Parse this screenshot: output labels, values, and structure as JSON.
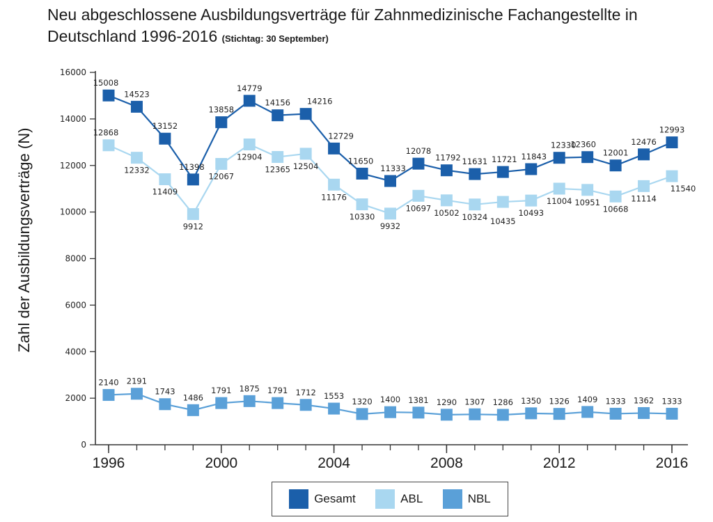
{
  "chart_data": {
    "type": "line",
    "title": "Neu abgeschlossene Ausbildungsverträge für Zahnmedizinische Fachangestellte in Deutschland 1996-2016",
    "subtitle": "(Stichtag: 30 September)",
    "xlabel": "",
    "ylabel": "Zahl der Ausbildungsverträge (N)",
    "x": [
      1996,
      1997,
      1998,
      1999,
      2000,
      2001,
      2002,
      2003,
      2004,
      2005,
      2006,
      2007,
      2008,
      2009,
      2010,
      2011,
      2012,
      2013,
      2014,
      2015,
      2016
    ],
    "xticks": [
      "1996",
      "2000",
      "2004",
      "2008",
      "2012",
      "2016"
    ],
    "yticks": [
      "0",
      "2000",
      "4000",
      "6000",
      "8000",
      "10000",
      "12000",
      "14000",
      "16000"
    ],
    "ylim": [
      0,
      16000
    ],
    "grid": false,
    "legend": "bottom",
    "series": [
      {
        "name": "Gesamt",
        "color": "#1b5faa",
        "values": [
          15008,
          14523,
          13152,
          11398,
          13858,
          14779,
          14156,
          14216,
          12729,
          11650,
          11333,
          12078,
          11792,
          11631,
          11721,
          11843,
          12330,
          12360,
          12001,
          12476,
          12993
        ],
        "labels": [
          "15008",
          "14523",
          "13152",
          "11398",
          "13858",
          "14779",
          "14156",
          "14216",
          "12729",
          "11650",
          "11333",
          "12078",
          "11792",
          "11631",
          "11721",
          "11843",
          "12330",
          "12360",
          "12001",
          "12476",
          "12993"
        ]
      },
      {
        "name": "ABL",
        "color": "#a9d7f0",
        "values": [
          12868,
          12332,
          11409,
          9912,
          12067,
          12904,
          12365,
          12504,
          11176,
          10330,
          9932,
          10697,
          10502,
          10324,
          10435,
          10493,
          11004,
          10951,
          10668,
          11114,
          11540
        ],
        "labels": [
          "12868",
          "12332",
          "11409",
          "9912",
          "12067",
          "12904",
          "12365",
          "12504",
          "11176",
          "10330",
          "9932",
          "10697",
          "10502",
          "10324",
          "10435",
          "10493",
          "11004",
          "10951",
          "10668",
          "11114",
          "11540"
        ]
      },
      {
        "name": "NBL",
        "color": "#5aa0d8",
        "values": [
          2140,
          2191,
          1743,
          1486,
          1791,
          1875,
          1791,
          1712,
          1553,
          1320,
          1400,
          1381,
          1290,
          1307,
          1286,
          1350,
          1326,
          1409,
          1333,
          1362,
          1333
        ],
        "labels": [
          "2140",
          "2191",
          "1743",
          "1486",
          "1791",
          "1875",
          "1791",
          "1712",
          "1553",
          "1320",
          "1400",
          "1381",
          "1290",
          "1307",
          "1286",
          "1350",
          "1326",
          "1409",
          "1333",
          "1362",
          "1333"
        ]
      }
    ]
  }
}
